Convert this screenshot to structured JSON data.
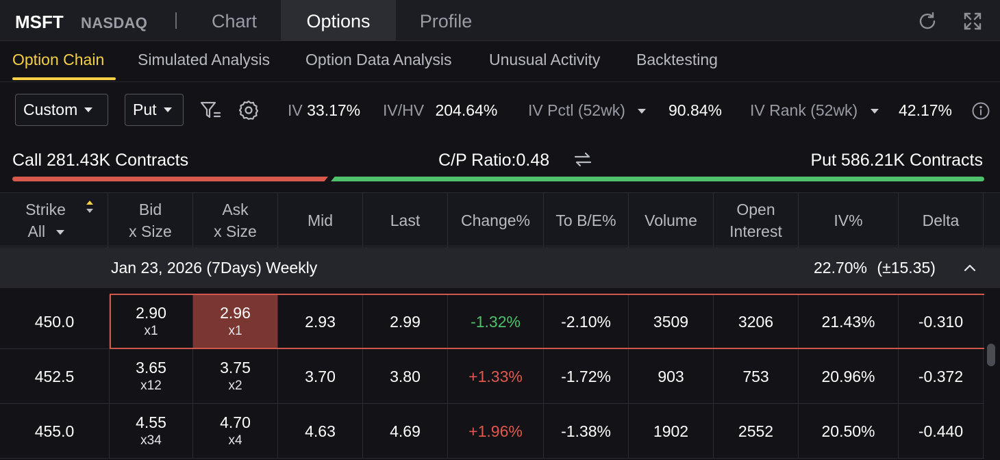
{
  "header": {
    "ticker": "MSFT",
    "exchange": "NASDAQ",
    "tabs": [
      {
        "label": "Chart",
        "active": false
      },
      {
        "label": "Options",
        "active": true
      },
      {
        "label": "Profile",
        "active": false
      }
    ],
    "icons": [
      "refresh-icon",
      "expand-icon"
    ]
  },
  "subtabs": [
    {
      "label": "Option Chain",
      "active": true
    },
    {
      "label": "Simulated Analysis",
      "active": false
    },
    {
      "label": "Option Data Analysis",
      "active": false
    },
    {
      "label": "Unusual Activity",
      "active": false
    },
    {
      "label": "Backtesting",
      "active": false
    }
  ],
  "controls": {
    "range_select": "Custom",
    "type_select": "Put",
    "iv_label": "IV",
    "iv_value": "33.17%",
    "ivhv_label": "IV/HV",
    "ivhv_value": "204.64%",
    "ivpctl_label": "IV Pctl (52wk)",
    "ivpctl_value": "90.84%",
    "ivrank_label": "IV Rank (52wk)",
    "ivrank_value": "42.17%"
  },
  "ratio": {
    "call_text": "Call 281.43K Contracts",
    "cp_ratio_text": "C/P Ratio:0.48",
    "put_text": "Put 586.21K Contracts",
    "call_contracts_k": 281.43,
    "put_contracts_k": 586.21,
    "call_color": "#d9594c",
    "put_color": "#4fc16a"
  },
  "table": {
    "headers": {
      "strike": "Strike",
      "strike_filter": "All",
      "bid_1": "Bid",
      "bid_2": "x Size",
      "ask_1": "Ask",
      "ask_2": "x Size",
      "mid": "Mid",
      "last": "Last",
      "change": "Change%",
      "tobe": "To B/E%",
      "volume": "Volume",
      "oi_1": "Open",
      "oi_2": "Interest",
      "iv": "IV%",
      "delta": "Delta"
    },
    "group": {
      "expiry": "Jan 23, 2026 (7Days) Weekly",
      "iv": "22.70%",
      "move": "(±15.35)"
    },
    "rows": [
      {
        "strike": "450.0",
        "bid": "2.90",
        "bid_size": "x1",
        "ask": "2.96",
        "ask_size": "x1",
        "mid": "2.93",
        "last": "2.99",
        "change": "-1.32%",
        "tobe": "-2.10%",
        "volume": "3509",
        "oi": "3206",
        "iv": "21.43%",
        "delta": "-0.310"
      },
      {
        "strike": "452.5",
        "bid": "3.65",
        "bid_size": "x12",
        "ask": "3.75",
        "ask_size": "x2",
        "mid": "3.70",
        "last": "3.80",
        "change": "+1.33%",
        "tobe": "-1.72%",
        "volume": "903",
        "oi": "753",
        "iv": "20.96%",
        "delta": "-0.372"
      },
      {
        "strike": "455.0",
        "bid": "4.55",
        "bid_size": "x34",
        "ask": "4.70",
        "ask_size": "x4",
        "mid": "4.63",
        "last": "4.69",
        "change": "+1.96%",
        "tobe": "-1.38%",
        "volume": "1902",
        "oi": "2552",
        "iv": "20.50%",
        "delta": "-0.440"
      }
    ]
  },
  "colors": {
    "accent": "#f7d046",
    "negative_change": "#4fc16a",
    "positive_change": "#e2584d",
    "selection": "#d1564b"
  }
}
